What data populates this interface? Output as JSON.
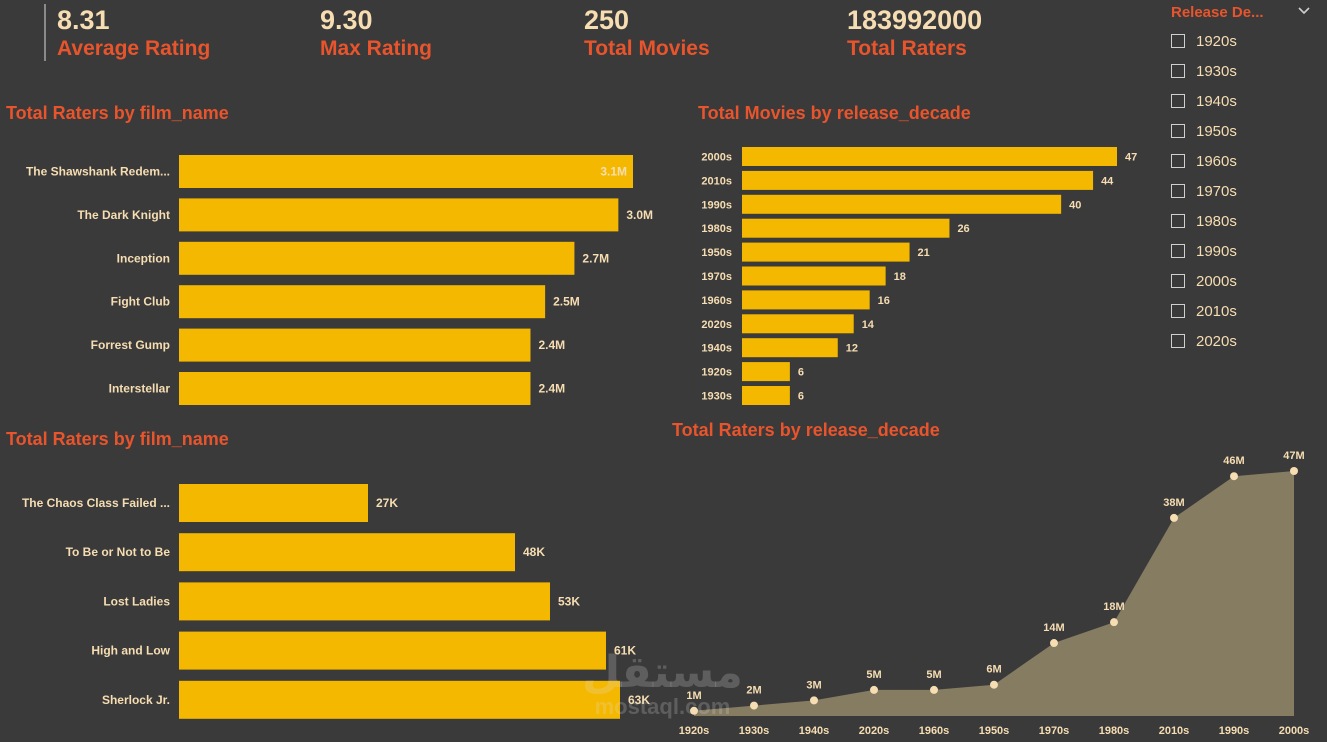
{
  "kpis": [
    {
      "value": "8.31",
      "label": "Average Rating"
    },
    {
      "value": "9.30",
      "label": "Max Rating"
    },
    {
      "value": "250",
      "label": "Total Movies"
    },
    {
      "value": "183992000",
      "label": "Total Raters"
    }
  ],
  "slicer": {
    "title": "Release De...",
    "options": [
      "1920s",
      "1930s",
      "1940s",
      "1950s",
      "1960s",
      "1970s",
      "1980s",
      "1990s",
      "2000s",
      "2010s",
      "2020s"
    ]
  },
  "watermark": {
    "arabic": "مستقل",
    "latin": "mostaql.com"
  },
  "colors": {
    "background": "#3a3a3a",
    "title": "#e8542c",
    "bar": "#f5b800",
    "text": "#f6ddb2",
    "area": "#867c62",
    "marker": "#f6ddb2"
  },
  "chart_data": [
    {
      "type": "bar",
      "title": "Total Raters by film_name",
      "orientation": "horizontal",
      "categories": [
        "The Shawshank Redem...",
        "The Dark Knight",
        "Inception",
        "Fight Club",
        "Forrest Gump",
        "Interstellar"
      ],
      "values": [
        3.1,
        3.0,
        2.7,
        2.5,
        2.4,
        2.4
      ],
      "data_labels": [
        "3.1M",
        "3.0M",
        "2.7M",
        "2.5M",
        "2.4M",
        "2.4M"
      ],
      "unit": "millions",
      "xlim": [
        0,
        3.1
      ]
    },
    {
      "type": "bar",
      "title": "Total Movies by release_decade",
      "orientation": "horizontal",
      "categories": [
        "2000s",
        "2010s",
        "1990s",
        "1980s",
        "1950s",
        "1970s",
        "1960s",
        "2020s",
        "1940s",
        "1920s",
        "1930s"
      ],
      "values": [
        47,
        44,
        40,
        26,
        21,
        18,
        16,
        14,
        12,
        6,
        6
      ],
      "data_labels": [
        "47",
        "44",
        "40",
        "26",
        "21",
        "18",
        "16",
        "14",
        "12",
        "6",
        "6"
      ],
      "xlim": [
        0,
        47
      ]
    },
    {
      "type": "bar",
      "title": "Total Raters by film_name",
      "orientation": "horizontal",
      "categories": [
        "The Chaos Class Failed ...",
        "To Be or Not to Be",
        "Lost Ladies",
        "High and Low",
        "Sherlock Jr."
      ],
      "values": [
        27,
        48,
        53,
        61,
        63
      ],
      "data_labels": [
        "27K",
        "48K",
        "53K",
        "61K",
        "63K"
      ],
      "unit": "thousands",
      "xlim": [
        0,
        70
      ]
    },
    {
      "type": "area",
      "title": "Total Raters by release_decade",
      "categories": [
        "1920s",
        "1930s",
        "1940s",
        "2020s",
        "1960s",
        "1950s",
        "1970s",
        "1980s",
        "2010s",
        "1990s",
        "2000s"
      ],
      "values": [
        1,
        2,
        3,
        5,
        5,
        6,
        14,
        18,
        38,
        46,
        47
      ],
      "data_labels": [
        "1M",
        "2M",
        "3M",
        "5M",
        "5M",
        "6M",
        "14M",
        "18M",
        "38M",
        "46M",
        "47M"
      ],
      "unit": "millions",
      "ylim": [
        0,
        47
      ]
    }
  ]
}
